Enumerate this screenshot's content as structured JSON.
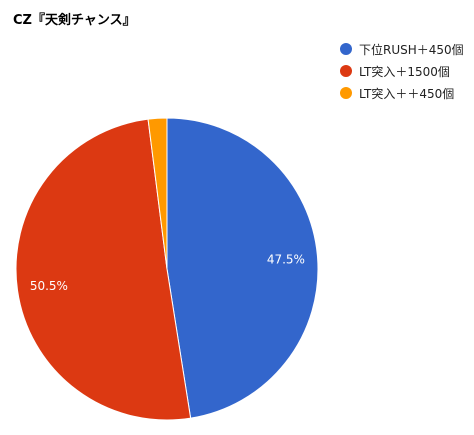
{
  "chart_data": {
    "type": "pie",
    "title": "CZ『天剣チャンス』",
    "categories": [
      "下位RUSH＋450個",
      "LT突入＋1500個",
      "LT突入＋＋450個"
    ],
    "values": [
      47.5,
      50.5,
      2.0
    ],
    "data_labels": [
      "47.5%",
      "50.5%",
      ""
    ],
    "colors": [
      "#3366cc",
      "#dc3912",
      "#ff9900"
    ],
    "start_angle_deg": 0,
    "direction": "clockwise",
    "legend_position": "right"
  }
}
